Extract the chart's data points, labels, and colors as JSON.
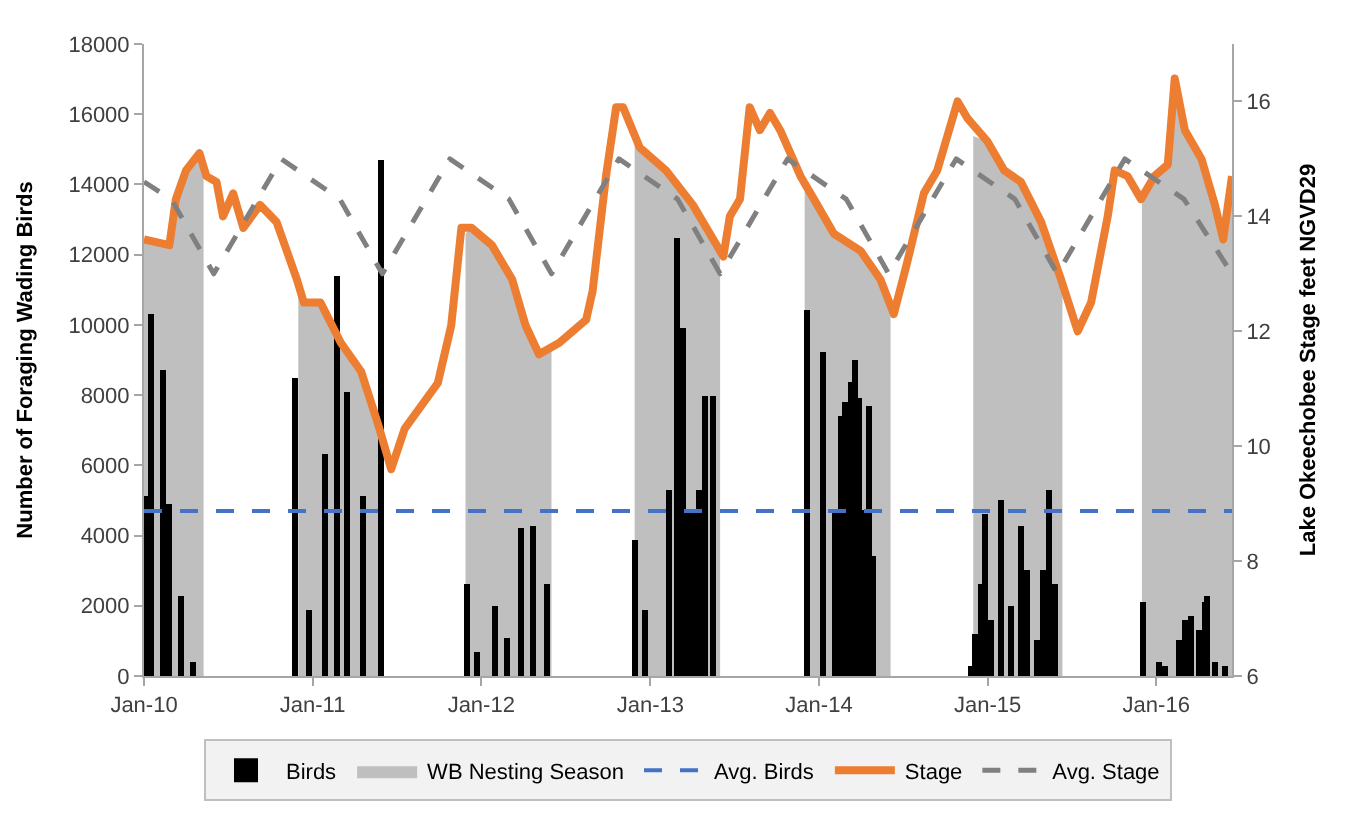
{
  "chart_data": {
    "type": "bar",
    "ylabel": "Number of Foraging Wading Birds",
    "y2label": "Lake Okeechobee Stage feet NGVD29",
    "xlim": [
      "2010-01-01",
      "2016-06-13"
    ],
    "xticks": [
      {
        "value": "2010-01-01",
        "label": "Jan-10"
      },
      {
        "value": "2011-01-01",
        "label": "Jan-11"
      },
      {
        "value": "2012-01-01",
        "label": "Jan-12"
      },
      {
        "value": "2013-01-01",
        "label": "Jan-13"
      },
      {
        "value": "2014-01-01",
        "label": "Jan-14"
      },
      {
        "value": "2015-01-01",
        "label": "Jan-15"
      },
      {
        "value": "2016-01-01",
        "label": "Jan-16"
      }
    ],
    "ylim": [
      0,
      18000
    ],
    "yticks": [
      0,
      2000,
      4000,
      6000,
      8000,
      10000,
      12000,
      14000,
      16000,
      18000
    ],
    "y2lim": [
      6,
      17
    ],
    "y2ticks": [
      6,
      8,
      10,
      12,
      14,
      16
    ],
    "legend": "bottom",
    "series": [
      {
        "name": "Birds",
        "color": "#000000",
        "x": [
          "2010-01-05",
          "2010-01-15",
          "2010-02-13",
          "2010-02-25",
          "2010-03-22",
          "2010-04-19",
          "2010-11-24",
          "2010-12-24",
          "2011-01-28",
          "2011-02-22",
          "2011-03-18",
          "2011-04-19",
          "2011-05-27",
          "2011-12-01",
          "2011-12-24",
          "2012-01-30",
          "2012-02-26",
          "2012-03-28",
          "2012-04-22",
          "2012-05-22",
          "2012-11-28",
          "2012-12-20",
          "2013-02-10",
          "2013-03-01",
          "2013-03-12",
          "2013-03-22",
          "2013-04-05",
          "2013-04-15",
          "2013-05-01",
          "2013-05-15",
          "2013-12-05",
          "2014-01-11",
          "2014-02-04",
          "2014-02-16",
          "2014-02-27",
          "2014-03-10",
          "2014-03-20",
          "2014-03-28",
          "2014-04-08",
          "2014-04-18",
          "2014-04-29",
          "2014-11-25",
          "2014-12-05",
          "2014-12-17",
          "2014-12-27",
          "2015-01-08",
          "2015-01-29",
          "2015-02-20",
          "2015-03-14",
          "2015-03-28",
          "2015-04-19",
          "2015-04-30",
          "2015-05-14",
          "2015-05-28",
          "2015-12-03",
          "2016-01-05",
          "2016-01-19",
          "2016-02-18",
          "2016-03-03",
          "2016-03-17",
          "2016-04-01",
          "2016-04-15",
          "2016-04-22",
          "2016-05-08",
          "2016-05-30"
        ],
        "values": [
          5100,
          10300,
          8700,
          4900,
          2300,
          400,
          8500,
          1900,
          6300,
          11400,
          8100,
          5100,
          14700,
          2600,
          700,
          2000,
          1100,
          4200,
          4300,
          2600,
          3900,
          1900,
          5300,
          12500,
          9900,
          4700,
          4700,
          5300,
          8000,
          8000,
          10400,
          9200,
          4700,
          7400,
          7800,
          8400,
          9000,
          7900,
          4700,
          7700,
          3400,
          300,
          1200,
          2600,
          4600,
          1600,
          5000,
          2000,
          4300,
          3000,
          1000,
          3000,
          5300,
          2600,
          2100,
          400,
          300,
          1000,
          1600,
          1700,
          1300,
          2100,
          2300,
          400,
          300
        ]
      },
      {
        "name": "WB Nesting Season",
        "type": "area",
        "axis": "y2",
        "color": "#bfbfbf",
        "x": [
          "2010-01-01",
          "2010-02-25",
          "2010-03-11",
          "2010-04-02",
          "2010-05-01",
          "2010-05-10",
          "2010-05-11",
          "2010-12-01",
          "2010-12-13",
          "2011-01-18",
          "2011-03-03",
          "2011-04-16",
          "2011-05-22",
          "2011-05-30",
          "2011-05-31",
          "2011-11-28",
          "2011-12-11",
          "2012-01-24",
          "2012-03-08",
          "2012-04-06",
          "2012-05-05",
          "2012-06-01",
          "2012-06-02",
          "2012-11-28",
          "2012-12-09",
          "2013-02-04",
          "2013-04-03",
          "2013-05-17",
          "2013-06-01",
          "2013-06-02",
          "2013-12-01",
          "2013-12-21",
          "2014-02-02",
          "2014-04-01",
          "2014-05-14",
          "2014-06-05",
          "2014-06-06",
          "2014-12-01",
          "2015-01-01",
          "2015-02-06",
          "2015-03-14",
          "2015-04-27",
          "2015-06-09",
          "2015-06-12",
          "2015-06-13",
          "2015-12-01",
          "2015-12-28",
          "2016-01-26",
          "2016-02-10",
          "2016-03-03",
          "2016-04-08",
          "2016-05-07",
          "2016-05-25",
          "2016-06-06",
          "2016-06-13"
        ],
        "values": [
          13.6,
          13.5,
          14.3,
          14.8,
          15.1,
          14.9,
          null,
          12.9,
          12.5,
          12.5,
          11.8,
          11.3,
          10.4,
          10.2,
          null,
          13.7,
          13.8,
          13.5,
          12.9,
          12.1,
          11.6,
          11.7,
          null,
          15.4,
          15.2,
          14.8,
          14.2,
          13.6,
          13.4,
          null,
          14.5,
          14.3,
          13.7,
          13.4,
          12.9,
          12.4,
          null,
          15.4,
          15.3,
          14.8,
          14.6,
          13.9,
          12.9,
          12.9,
          null,
          14.4,
          14.7,
          14.9,
          16.4,
          15.5,
          15.0,
          14.2,
          13.6,
          14.3,
          14.7
        ]
      },
      {
        "name": "Stage",
        "type": "line",
        "axis": "y2",
        "color": "#ed7d31",
        "line_style": "solid",
        "x": [
          "2010-01-01",
          "2010-02-25",
          "2010-03-11",
          "2010-04-02",
          "2010-05-01",
          "2010-05-16",
          "2010-06-07",
          "2010-06-21",
          "2010-07-13",
          "2010-08-04",
          "2010-09-09",
          "2010-10-15",
          "2010-11-28",
          "2010-12-13",
          "2011-01-18",
          "2011-03-03",
          "2011-04-16",
          "2011-05-22",
          "2011-06-20",
          "2011-07-19",
          "2011-09-29",
          "2011-10-28",
          "2011-11-19",
          "2011-12-11",
          "2012-01-24",
          "2012-03-08",
          "2012-04-06",
          "2012-05-05",
          "2012-06-18",
          "2012-08-15",
          "2012-08-29",
          "2012-09-27",
          "2012-10-19",
          "2012-11-03",
          "2012-12-09",
          "2013-02-04",
          "2013-04-03",
          "2013-05-17",
          "2013-06-08",
          "2013-06-22",
          "2013-07-14",
          "2013-08-04",
          "2013-08-26",
          "2013-09-17",
          "2013-10-09",
          "2013-11-22",
          "2013-12-21",
          "2014-02-02",
          "2014-04-01",
          "2014-05-14",
          "2014-06-12",
          "2014-07-11",
          "2014-08-16",
          "2014-09-14",
          "2014-10-28",
          "2014-11-19",
          "2015-01-01",
          "2015-02-06",
          "2015-03-14",
          "2015-04-27",
          "2015-06-09",
          "2015-07-15",
          "2015-08-13",
          "2015-09-18",
          "2015-10-03",
          "2015-10-31",
          "2015-11-29",
          "2015-12-28",
          "2016-01-26",
          "2016-02-10",
          "2016-03-03",
          "2016-04-08",
          "2016-05-07",
          "2016-05-25",
          "2016-06-06",
          "2016-06-13"
        ],
        "values": [
          13.6,
          13.5,
          14.3,
          14.8,
          15.1,
          14.7,
          14.6,
          14.0,
          14.4,
          13.8,
          14.2,
          13.9,
          12.9,
          12.5,
          12.5,
          11.8,
          11.3,
          10.4,
          9.6,
          10.3,
          11.1,
          12.1,
          13.8,
          13.8,
          13.5,
          12.9,
          12.1,
          11.6,
          11.8,
          12.2,
          12.7,
          14.7,
          15.9,
          15.9,
          15.2,
          14.8,
          14.2,
          13.6,
          13.3,
          14.0,
          14.3,
          15.9,
          15.5,
          15.8,
          15.5,
          14.7,
          14.3,
          13.7,
          13.4,
          12.9,
          12.3,
          13.2,
          14.4,
          14.8,
          16.0,
          15.7,
          15.3,
          14.8,
          14.6,
          13.9,
          12.9,
          12.0,
          12.5,
          14.0,
          14.8,
          14.7,
          14.3,
          14.7,
          14.9,
          16.4,
          15.5,
          15.0,
          14.2,
          13.6,
          14.3,
          14.7
        ]
      },
      {
        "name": "Avg. Stage",
        "type": "line",
        "axis": "y2",
        "color": "#808080",
        "line_style": "dashed",
        "x": [
          "2010-01-01",
          "2010-03-01",
          "2010-06-01",
          "2010-10-25",
          "2011-03-01",
          "2011-06-01",
          "2011-10-25",
          "2012-03-01",
          "2012-06-01",
          "2012-10-25",
          "2013-03-01",
          "2013-06-01",
          "2013-10-25",
          "2014-03-01",
          "2014-06-01",
          "2014-10-25",
          "2015-03-01",
          "2015-06-01",
          "2015-10-25",
          "2016-03-01",
          "2016-06-13"
        ],
        "values": [
          14.6,
          14.3,
          13.0,
          15.0,
          14.3,
          13.0,
          15.0,
          14.3,
          13.0,
          15.0,
          14.3,
          13.0,
          15.0,
          14.3,
          13.0,
          15.0,
          14.3,
          13.0,
          15.0,
          14.3,
          13.0
        ]
      }
    ],
    "ref_lines": [
      {
        "axis": "y",
        "value": 4700,
        "label": "Avg. Birds",
        "color": "#4472c4",
        "line_style": "dashed"
      }
    ]
  }
}
